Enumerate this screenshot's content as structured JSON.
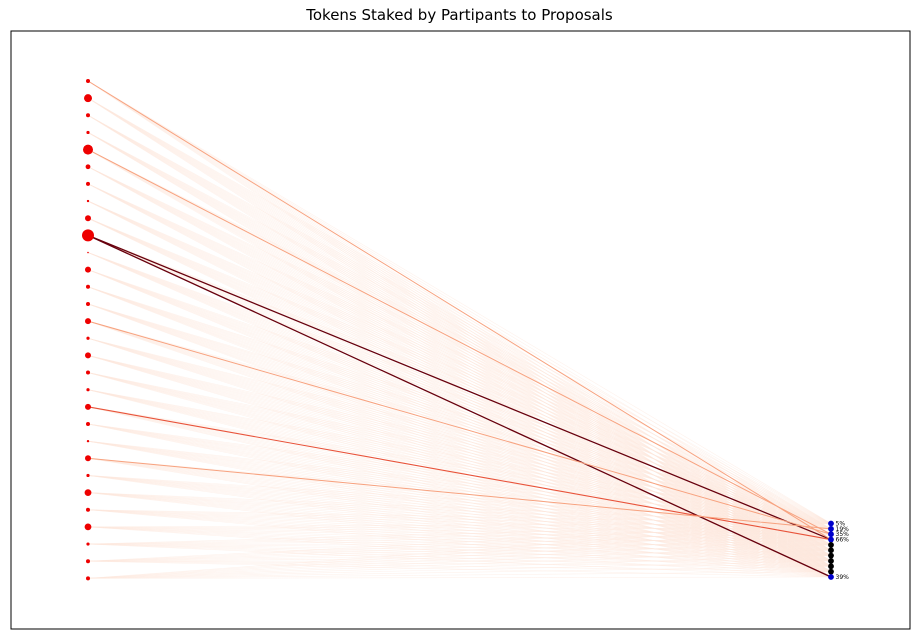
{
  "title": "Tokens Staked by Partipants to Proposals",
  "colors": {
    "participant": "#ee0000",
    "proposal_active": "#0000cc",
    "proposal_inactive": "#000000",
    "edge_low": "#fde8dc",
    "edge_mid": "#f7a27f",
    "edge_high": "#e8533a",
    "edge_max": "#67000d"
  },
  "participants": [
    {
      "size": 2
    },
    {
      "size": 4
    },
    {
      "size": 2
    },
    {
      "size": 1.6
    },
    {
      "size": 5
    },
    {
      "size": 2.4
    },
    {
      "size": 2
    },
    {
      "size": 1.2
    },
    {
      "size": 3
    },
    {
      "size": 6
    },
    {
      "size": 0.8
    },
    {
      "size": 3
    },
    {
      "size": 2
    },
    {
      "size": 2
    },
    {
      "size": 3
    },
    {
      "size": 1.6
    },
    {
      "size": 3
    },
    {
      "size": 2
    },
    {
      "size": 1.6
    },
    {
      "size": 3
    },
    {
      "size": 2
    },
    {
      "size": 1.2
    },
    {
      "size": 3
    },
    {
      "size": 1.6
    },
    {
      "size": 3.4
    },
    {
      "size": 2
    },
    {
      "size": 3.4
    },
    {
      "size": 1.6
    },
    {
      "size": 2
    },
    {
      "size": 2
    }
  ],
  "proposals": [
    {
      "label": "5%",
      "active": true
    },
    {
      "label": "19%",
      "active": true
    },
    {
      "label": "35%",
      "active": true
    },
    {
      "label": "66%",
      "active": true
    },
    {
      "label": "",
      "active": false
    },
    {
      "label": "",
      "active": false
    },
    {
      "label": "",
      "active": false
    },
    {
      "label": "",
      "active": false
    },
    {
      "label": "",
      "active": false
    },
    {
      "label": "",
      "active": false
    },
    {
      "label": "39%",
      "active": true
    }
  ],
  "strong_edges": [
    {
      "from": 9,
      "to": 3,
      "level": "max"
    },
    {
      "from": 9,
      "to": 10,
      "level": "max"
    },
    {
      "from": 0,
      "to": 3,
      "level": "mid"
    },
    {
      "from": 19,
      "to": 3,
      "level": "high"
    },
    {
      "from": 4,
      "to": 2,
      "level": "mid"
    },
    {
      "from": 14,
      "to": 2,
      "level": "mid"
    },
    {
      "from": 22,
      "to": 1,
      "level": "mid"
    }
  ]
}
